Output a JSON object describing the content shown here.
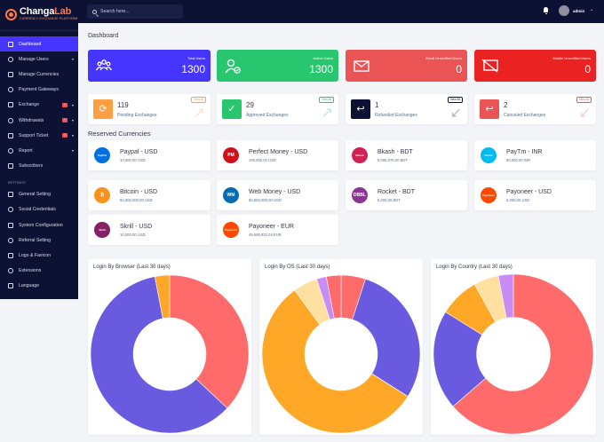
{
  "brand": {
    "name_part1": "Changa",
    "name_part2": "Lab",
    "tagline": "Currency Exchange Platform"
  },
  "sidebar": {
    "items": [
      {
        "label": "Dashboard",
        "icon": "home-icon",
        "active": true
      },
      {
        "label": "Manage Users",
        "icon": "users-icon",
        "chevron": true
      },
      {
        "label": "Manage Currencies",
        "icon": "currency-icon"
      },
      {
        "label": "Payment Gateways",
        "icon": "credit-card-icon"
      },
      {
        "label": "Exchange",
        "icon": "exchange-icon",
        "badge": "!",
        "chevron": true
      },
      {
        "label": "Withdrawals",
        "icon": "bank-icon",
        "badge": "!",
        "chevron": true
      },
      {
        "label": "Support Ticket",
        "icon": "ticket-icon",
        "badge": "!",
        "chevron": true
      },
      {
        "label": "Report",
        "icon": "list-icon",
        "chevron": true
      },
      {
        "label": "Subscribers",
        "icon": "thumbs-up-icon"
      }
    ],
    "settings_heading": "Settings",
    "settings_items": [
      {
        "label": "General Setting",
        "icon": "gear-icon"
      },
      {
        "label": "Social Credentials",
        "icon": "cogs-icon"
      },
      {
        "label": "System Configuration",
        "icon": "sliders-icon"
      },
      {
        "label": "Referral Setting",
        "icon": "link-icon"
      },
      {
        "label": "Logo & Favicon",
        "icon": "image-icon"
      },
      {
        "label": "Extensions",
        "icon": "puzzle-icon"
      },
      {
        "label": "Language",
        "icon": "language-icon"
      }
    ]
  },
  "topbar": {
    "search_placeholder": "Search here...",
    "admin_name": "admin"
  },
  "main": {
    "title": "Dashboard",
    "widgets": [
      {
        "label": "Total Users",
        "value": "1300",
        "color": "#4634ff",
        "icon": "users-icon"
      },
      {
        "label": "Active Users",
        "value": "1300",
        "color": "#28c76f",
        "icon": "user-check-icon"
      },
      {
        "label": "Email Unverified Users",
        "value": "0",
        "color": "#ea5455",
        "icon": "envelope-icon"
      },
      {
        "label": "Mobile Unverified Users",
        "value": "0",
        "color": "#eb2222",
        "icon": "comment-slash-icon"
      }
    ],
    "exchange_stats": [
      {
        "value": "119",
        "label": "Pending Exchanges",
        "view": "View All",
        "color": "#ff9f43",
        "icon": "sync-icon"
      },
      {
        "value": "29",
        "label": "Approved Exchanges",
        "view": "View All",
        "color": "#28c76f",
        "icon": "check-icon"
      },
      {
        "value": "1",
        "label": "Refunded Exchanges",
        "view": "View All",
        "color": "#0d1133",
        "icon": "undo-icon"
      },
      {
        "value": "2",
        "label": "Canceled Exchanges",
        "view": "View All",
        "color": "#ea5455",
        "icon": "undo-icon"
      }
    ],
    "reserved_title": "Reserved Currencies",
    "currencies": [
      {
        "name": "Paypal - USD",
        "amount": "10,000.00 USD",
        "logo": "PayPal",
        "color": "#0070e0"
      },
      {
        "name": "Perfect Money - USD",
        "amount": "100,000.00 USD",
        "logo": "PM",
        "color": "#d0111b"
      },
      {
        "name": "Bkash - BDT",
        "amount": "9,005,075.00 BDT",
        "logo": "bKash",
        "color": "#d12053"
      },
      {
        "name": "PayTm - INR",
        "amount": "90,000.00 INR",
        "logo": "Paytm",
        "color": "#00baf2"
      },
      {
        "name": "Bitcoin - USD",
        "amount": "80,000,000.00 USD",
        "logo": "₿",
        "color": "#f7931a"
      },
      {
        "name": "Web Money - USD",
        "amount": "60,000,000.00 USD",
        "logo": "WM",
        "color": "#036cb5"
      },
      {
        "name": "Rocket - BDT",
        "amount": "6,000.00 BDT",
        "logo": "DBBL",
        "color": "#8c3494"
      },
      {
        "name": "Payoneer - USD",
        "amount": "5,000.00 USD",
        "logo": "Payoneer",
        "color": "#ff4800"
      },
      {
        "name": "Skrill - USD",
        "amount": "10,000.00 USD",
        "logo": "Skrill",
        "color": "#862165"
      },
      {
        "name": "Payoneer - EUR",
        "amount": "49,566,932.04 EUR",
        "logo": "Payoneer",
        "color": "#ff4800"
      }
    ],
    "charts": [
      {
        "title": "Login By Browser (Last 30 days)"
      },
      {
        "title": "Login By OS (Last 30 days)"
      },
      {
        "title": "Login By Country (Last 30 days)"
      }
    ]
  },
  "chart_data": [
    {
      "type": "pie",
      "title": "Login By Browser (Last 30 days)",
      "values": [
        37,
        60,
        3
      ],
      "colors": [
        "#ff6b6b",
        "#6a5ae0",
        "#ffa726"
      ]
    },
    {
      "type": "pie",
      "title": "Login By OS (Last 30 days)",
      "values": [
        5,
        29,
        56,
        5,
        2,
        3
      ],
      "colors": [
        "#ff6b6b",
        "#6a5ae0",
        "#ffa726",
        "#ffe0a0",
        "#c98cf5",
        "#ff6b6b"
      ]
    },
    {
      "type": "pie",
      "title": "Login By Country (Last 30 days)",
      "values": [
        63,
        20,
        8,
        5,
        3
      ],
      "colors": [
        "#ff6b6b",
        "#6a5ae0",
        "#ffa726",
        "#ffe0a0",
        "#c98cf5"
      ]
    }
  ]
}
